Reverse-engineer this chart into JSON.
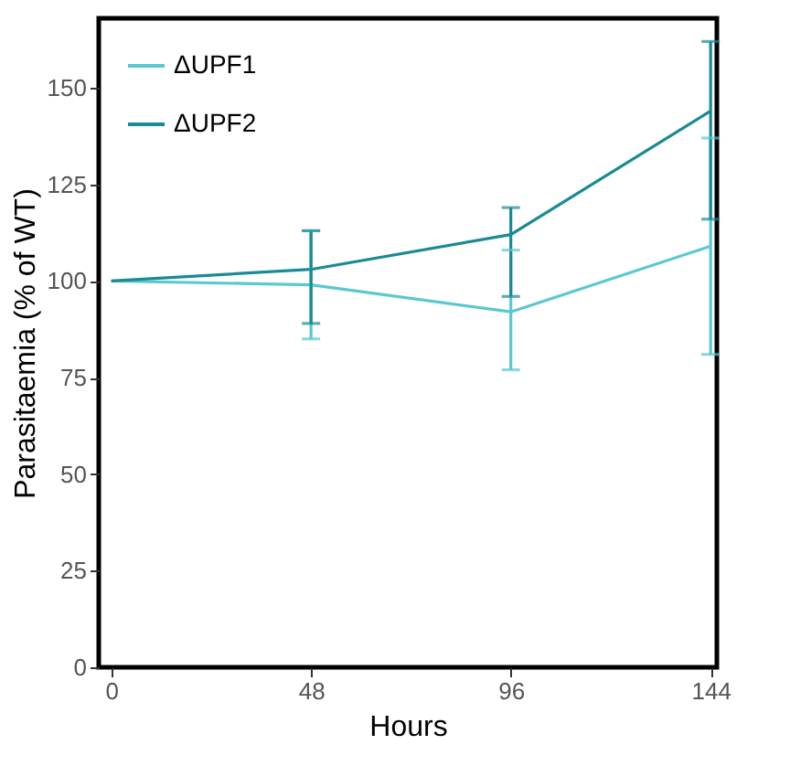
{
  "chart_data": {
    "type": "line",
    "xlabel": "Hours",
    "ylabel": "Parasitaemia (% of WT)",
    "x": [
      0,
      48,
      96,
      144
    ],
    "xlim": [
      -3,
      145.5
    ],
    "xticks": [
      0,
      48,
      96,
      144
    ],
    "ylim": [
      0,
      168
    ],
    "yticks": [
      0,
      25,
      50,
      75,
      100,
      125,
      150
    ],
    "grid": false,
    "legend": "top left",
    "marker": "none",
    "line_style": "solid",
    "series": [
      {
        "name": "ΔUPF1",
        "color": "#5bc8d0",
        "values": [
          100,
          99,
          92,
          109
        ],
        "errors": [
          null,
          [
            85,
            113
          ],
          [
            77,
            108
          ],
          [
            81,
            137
          ]
        ]
      },
      {
        "name": "ΔUPF2",
        "color": "#1a8a94",
        "values": [
          100,
          103,
          112,
          144
        ],
        "errors": [
          null,
          [
            89,
            113
          ],
          [
            96,
            119
          ],
          [
            116,
            162
          ]
        ]
      }
    ]
  }
}
